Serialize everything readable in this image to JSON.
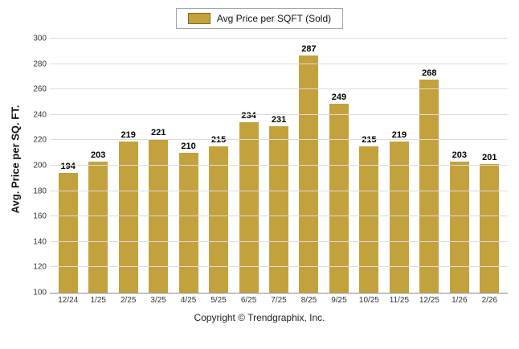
{
  "legend": {
    "label": "Avg Price per SQFT (Sold)"
  },
  "footer": {
    "copyright": "Copyright © Trendgraphix, Inc."
  },
  "chart_data": {
    "type": "bar",
    "title": "Avg Price per SQFT (Sold)",
    "xlabel": "",
    "ylabel": "Avg. Price per SQ. FT.",
    "categories": [
      "12/24",
      "1/25",
      "2/25",
      "3/25",
      "4/25",
      "5/25",
      "6/25",
      "7/25",
      "8/25",
      "9/25",
      "10/25",
      "11/25",
      "12/25",
      "1/26",
      "2/26"
    ],
    "values": [
      194,
      203,
      219,
      221,
      210,
      215,
      234,
      231,
      287,
      249,
      215,
      219,
      268,
      203,
      201
    ],
    "ylim": [
      100,
      300
    ],
    "yticks": [
      100,
      120,
      140,
      160,
      180,
      200,
      220,
      240,
      260,
      280,
      300
    ],
    "bar_color": "#C3A13D",
    "grid": true,
    "legend_position": "top"
  }
}
